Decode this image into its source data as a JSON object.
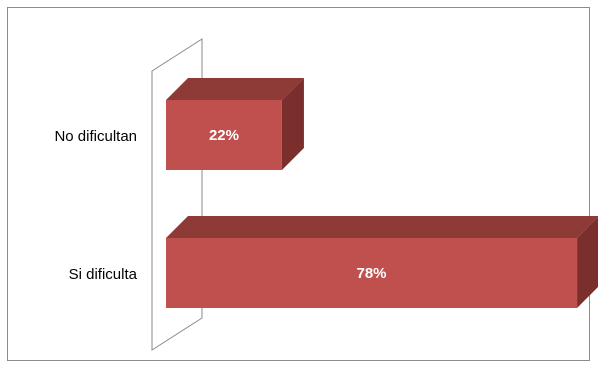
{
  "chart_data": {
    "type": "bar",
    "orientation": "horizontal",
    "style": "3d",
    "categories": [
      "No dificultan",
      "Si dificulta"
    ],
    "values": [
      22,
      78
    ],
    "data_labels": [
      "22%",
      "78%"
    ],
    "unit": "%",
    "xlim": [
      0,
      100
    ],
    "grid": false,
    "legend": "none",
    "colors": {
      "bar_front": "#c0504d",
      "bar_top": "#8e3a37",
      "bar_side": "#7a2f2d",
      "wall_line": "#888888"
    }
  }
}
